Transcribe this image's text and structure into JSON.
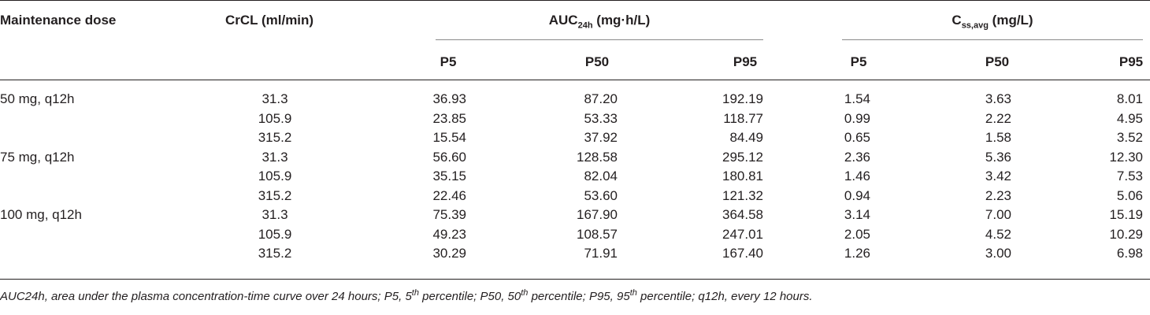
{
  "table": {
    "headers": {
      "maintenance_dose": "Maintenance dose",
      "crcl": "CrCL (ml/min)",
      "auc_main": "AUC",
      "auc_sub": "24h",
      "auc_unit": " (mg·h/L)",
      "css_main": "C",
      "css_sub": "ss,avg",
      "css_unit": " (mg/L)",
      "auc_p5": "P5",
      "auc_p50": "P50",
      "auc_p95": "P95",
      "css_p5": "P5",
      "css_p50": "P50",
      "css_p95": "P95"
    },
    "rows": [
      {
        "dose": "50 mg, q12h",
        "crcl": "31.3",
        "auc_p5": "36.93",
        "auc_p50": "87.20",
        "auc_p95": "192.19",
        "css_p5": "1.54",
        "css_p50": "3.63",
        "css_p95": "8.01"
      },
      {
        "dose": "",
        "crcl": "105.9",
        "auc_p5": "23.85",
        "auc_p50": "53.33",
        "auc_p95": "118.77",
        "css_p5": "0.99",
        "css_p50": "2.22",
        "css_p95": "4.95"
      },
      {
        "dose": "",
        "crcl": "315.2",
        "auc_p5": "15.54",
        "auc_p50": "37.92",
        "auc_p95": "84.49",
        "css_p5": "0.65",
        "css_p50": "1.58",
        "css_p95": "3.52"
      },
      {
        "dose": "75 mg, q12h",
        "crcl": "31.3",
        "auc_p5": "56.60",
        "auc_p50": "128.58",
        "auc_p95": "295.12",
        "css_p5": "2.36",
        "css_p50": "5.36",
        "css_p95": "12.30"
      },
      {
        "dose": "",
        "crcl": "105.9",
        "auc_p5": "35.15",
        "auc_p50": "82.04",
        "auc_p95": "180.81",
        "css_p5": "1.46",
        "css_p50": "3.42",
        "css_p95": "7.53"
      },
      {
        "dose": "",
        "crcl": "315.2",
        "auc_p5": "22.46",
        "auc_p50": "53.60",
        "auc_p95": "121.32",
        "css_p5": "0.94",
        "css_p50": "2.23",
        "css_p95": "5.06"
      },
      {
        "dose": "100 mg, q12h",
        "crcl": "31.3",
        "auc_p5": "75.39",
        "auc_p50": "167.90",
        "auc_p95": "364.58",
        "css_p5": "3.14",
        "css_p50": "7.00",
        "css_p95": "15.19"
      },
      {
        "dose": "",
        "crcl": "105.9",
        "auc_p5": "49.23",
        "auc_p50": "108.57",
        "auc_p95": "247.01",
        "css_p5": "2.05",
        "css_p50": "4.52",
        "css_p95": "10.29"
      },
      {
        "dose": "",
        "crcl": "315.2",
        "auc_p5": "30.29",
        "auc_p50": "71.91",
        "auc_p95": "167.40",
        "css_p5": "1.26",
        "css_p50": "3.00",
        "css_p95": "6.98"
      }
    ]
  },
  "footnote": {
    "part1": "AUC24h, area under the plasma concentration-time curve over 24 hours; P5, 5",
    "sup1": "th",
    "part2": " percentile; P50, 50",
    "sup2": "th",
    "part3": " percentile; P95, 95",
    "sup3": "th",
    "part4": " percentile; q12h, every 12 hours."
  }
}
